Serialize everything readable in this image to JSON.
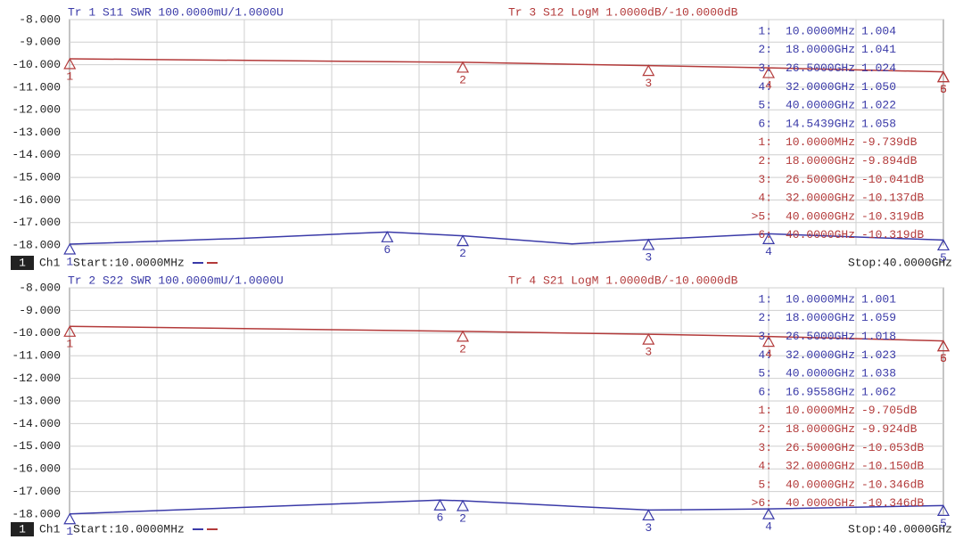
{
  "chart_data": [
    {
      "type": "line",
      "header_left": "Tr 1  S11 SWR 100.0000mU/1.0000U",
      "header_right": "Tr 3  S12 LogM 1.0000dB/-10.0000dB",
      "ylim": [
        -18,
        -8
      ],
      "yticks": [
        {
          "value": -8,
          "label": "-8.000"
        },
        {
          "value": -9,
          "label": "-9.000"
        },
        {
          "value": -10,
          "label": "-10.000"
        },
        {
          "value": -11,
          "label": "-11.000"
        },
        {
          "value": -12,
          "label": "-12.000"
        },
        {
          "value": -13,
          "label": "-13.000"
        },
        {
          "value": -14,
          "label": "-14.000"
        },
        {
          "value": -15,
          "label": "-15.000"
        },
        {
          "value": -16,
          "label": "-16.000"
        },
        {
          "value": -17,
          "label": "-17.000"
        },
        {
          "value": -18,
          "label": "-18.000"
        }
      ],
      "y2lim": [
        1,
        2
      ],
      "xlim": [
        0,
        40
      ],
      "grid": true,
      "series": [
        {
          "color": "#b33a3a",
          "x": [
            0.01,
            18,
            26.5,
            32,
            40
          ],
          "values": [
            -9.739,
            -9.894,
            -10.041,
            -10.137,
            -10.319
          ],
          "markers": [
            {
              "label": "1",
              "x": 0.01,
              "value": -9.739
            },
            {
              "label": "2",
              "x": 18,
              "value": -9.894
            },
            {
              "label": "3",
              "x": 26.5,
              "value": -10.041
            },
            {
              "label": "4",
              "x": 32,
              "value": -10.137
            },
            {
              "label": "5",
              "x": 40,
              "value": -10.319
            },
            {
              "label": "6",
              "x": 40,
              "value": -10.319
            }
          ]
        },
        {
          "color": "#3a3aa8",
          "axis": "y2",
          "x": [
            0.01,
            8,
            14.5439,
            18,
            23,
            26.5,
            32,
            40
          ],
          "values": [
            1.004,
            1.03,
            1.058,
            1.041,
            1.005,
            1.024,
            1.05,
            1.022
          ],
          "markers": [
            {
              "label": "1",
              "x": 0.01,
              "value": 1.004
            },
            {
              "label": "2",
              "x": 18,
              "value": 1.041
            },
            {
              "label": "3",
              "x": 26.5,
              "value": 1.024
            },
            {
              "label": "4",
              "x": 32,
              "value": 1.05
            },
            {
              "label": "5",
              "x": 40,
              "value": 1.022
            },
            {
              "label": "6",
              "x": 14.5439,
              "value": 1.058
            }
          ]
        }
      ],
      "marker_table": [
        {
          "id": "1:",
          "freq": "10.0000MHz",
          "value": "1.004",
          "trace": 1
        },
        {
          "id": "2:",
          "freq": "18.0000GHz",
          "value": "1.041",
          "trace": 1
        },
        {
          "id": "3:",
          "freq": "26.5000GHz",
          "value": "1.024",
          "trace": 1
        },
        {
          "id": "4:",
          "freq": "32.0000GHz",
          "value": "1.050",
          "trace": 1
        },
        {
          "id": "5:",
          "freq": "40.0000GHz",
          "value": "1.022",
          "trace": 1
        },
        {
          "id": "6:",
          "freq": "14.5439GHz",
          "value": "1.058",
          "trace": 1
        },
        {
          "id": "1:",
          "freq": "10.0000MHz",
          "value": "-9.739dB",
          "trace": 0
        },
        {
          "id": "2:",
          "freq": "18.0000GHz",
          "value": "-9.894dB",
          "trace": 0
        },
        {
          "id": "3:",
          "freq": "26.5000GHz",
          "value": "-10.041dB",
          "trace": 0
        },
        {
          "id": "4:",
          "freq": "32.0000GHz",
          "value": "-10.137dB",
          "trace": 0
        },
        {
          "id": ">5:",
          "freq": "40.0000GHz",
          "value": "-10.319dB",
          "trace": 0
        },
        {
          "id": "6:",
          "freq": "40.0000GHz",
          "value": "-10.319dB",
          "trace": 0
        }
      ],
      "channel": "1",
      "channel_name": "Ch1",
      "start": "Start:10.0000MHz",
      "stop": "Stop:40.0000GHz"
    },
    {
      "type": "line",
      "header_left": "Tr 2  S22 SWR 100.0000mU/1.0000U",
      "header_right": "Tr 4  S21 LogM 1.0000dB/-10.0000dB",
      "ylim": [
        -18,
        -8
      ],
      "yticks": [
        {
          "value": -8,
          "label": "-8.000"
        },
        {
          "value": -9,
          "label": "-9.000"
        },
        {
          "value": -10,
          "label": "-10.000"
        },
        {
          "value": -11,
          "label": "-11.000"
        },
        {
          "value": -12,
          "label": "-12.000"
        },
        {
          "value": -13,
          "label": "-13.000"
        },
        {
          "value": -14,
          "label": "-14.000"
        },
        {
          "value": -15,
          "label": "-15.000"
        },
        {
          "value": -16,
          "label": "-16.000"
        },
        {
          "value": -17,
          "label": "-17.000"
        },
        {
          "value": -18,
          "label": "-18.000"
        }
      ],
      "y2lim": [
        1,
        2
      ],
      "xlim": [
        0,
        40
      ],
      "grid": true,
      "series": [
        {
          "color": "#b33a3a",
          "x": [
            0.01,
            18,
            26.5,
            32,
            40
          ],
          "values": [
            -9.705,
            -9.924,
            -10.053,
            -10.15,
            -10.346
          ],
          "markers": [
            {
              "label": "1",
              "x": 0.01,
              "value": -9.705
            },
            {
              "label": "2",
              "x": 18,
              "value": -9.924
            },
            {
              "label": "3",
              "x": 26.5,
              "value": -10.053
            },
            {
              "label": "4",
              "x": 32,
              "value": -10.15
            },
            {
              "label": "5",
              "x": 40,
              "value": -10.346
            },
            {
              "label": "6",
              "x": 40,
              "value": -10.346
            }
          ]
        },
        {
          "color": "#3a3aa8",
          "axis": "y2",
          "x": [
            0.01,
            8,
            16.9558,
            18,
            26.5,
            32,
            40
          ],
          "values": [
            1.001,
            1.03,
            1.062,
            1.059,
            1.018,
            1.023,
            1.038
          ],
          "markers": [
            {
              "label": "1",
              "x": 0.01,
              "value": 1.001
            },
            {
              "label": "2",
              "x": 18,
              "value": 1.059
            },
            {
              "label": "3",
              "x": 26.5,
              "value": 1.018
            },
            {
              "label": "4",
              "x": 32,
              "value": 1.023
            },
            {
              "label": "5",
              "x": 40,
              "value": 1.038
            },
            {
              "label": "6",
              "x": 16.9558,
              "value": 1.062
            }
          ]
        }
      ],
      "marker_table": [
        {
          "id": "1:",
          "freq": "10.0000MHz",
          "value": "1.001",
          "trace": 1
        },
        {
          "id": "2:",
          "freq": "18.0000GHz",
          "value": "1.059",
          "trace": 1
        },
        {
          "id": "3:",
          "freq": "26.5000GHz",
          "value": "1.018",
          "trace": 1
        },
        {
          "id": "4:",
          "freq": "32.0000GHz",
          "value": "1.023",
          "trace": 1
        },
        {
          "id": "5:",
          "freq": "40.0000GHz",
          "value": "1.038",
          "trace": 1
        },
        {
          "id": "6:",
          "freq": "16.9558GHz",
          "value": "1.062",
          "trace": 1
        },
        {
          "id": "1:",
          "freq": "10.0000MHz",
          "value": "-9.705dB",
          "trace": 0
        },
        {
          "id": "2:",
          "freq": "18.0000GHz",
          "value": "-9.924dB",
          "trace": 0
        },
        {
          "id": "3:",
          "freq": "26.5000GHz",
          "value": "-10.053dB",
          "trace": 0
        },
        {
          "id": "4:",
          "freq": "32.0000GHz",
          "value": "-10.150dB",
          "trace": 0
        },
        {
          "id": "5:",
          "freq": "40.0000GHz",
          "value": "-10.346dB",
          "trace": 0
        },
        {
          "id": ">6:",
          "freq": "40.0000GHz",
          "value": "-10.346dB",
          "trace": 0
        }
      ],
      "channel": "1",
      "channel_name": "Ch1",
      "start": "Start:10.0000MHz",
      "stop": "Stop:40.0000GHz"
    }
  ]
}
